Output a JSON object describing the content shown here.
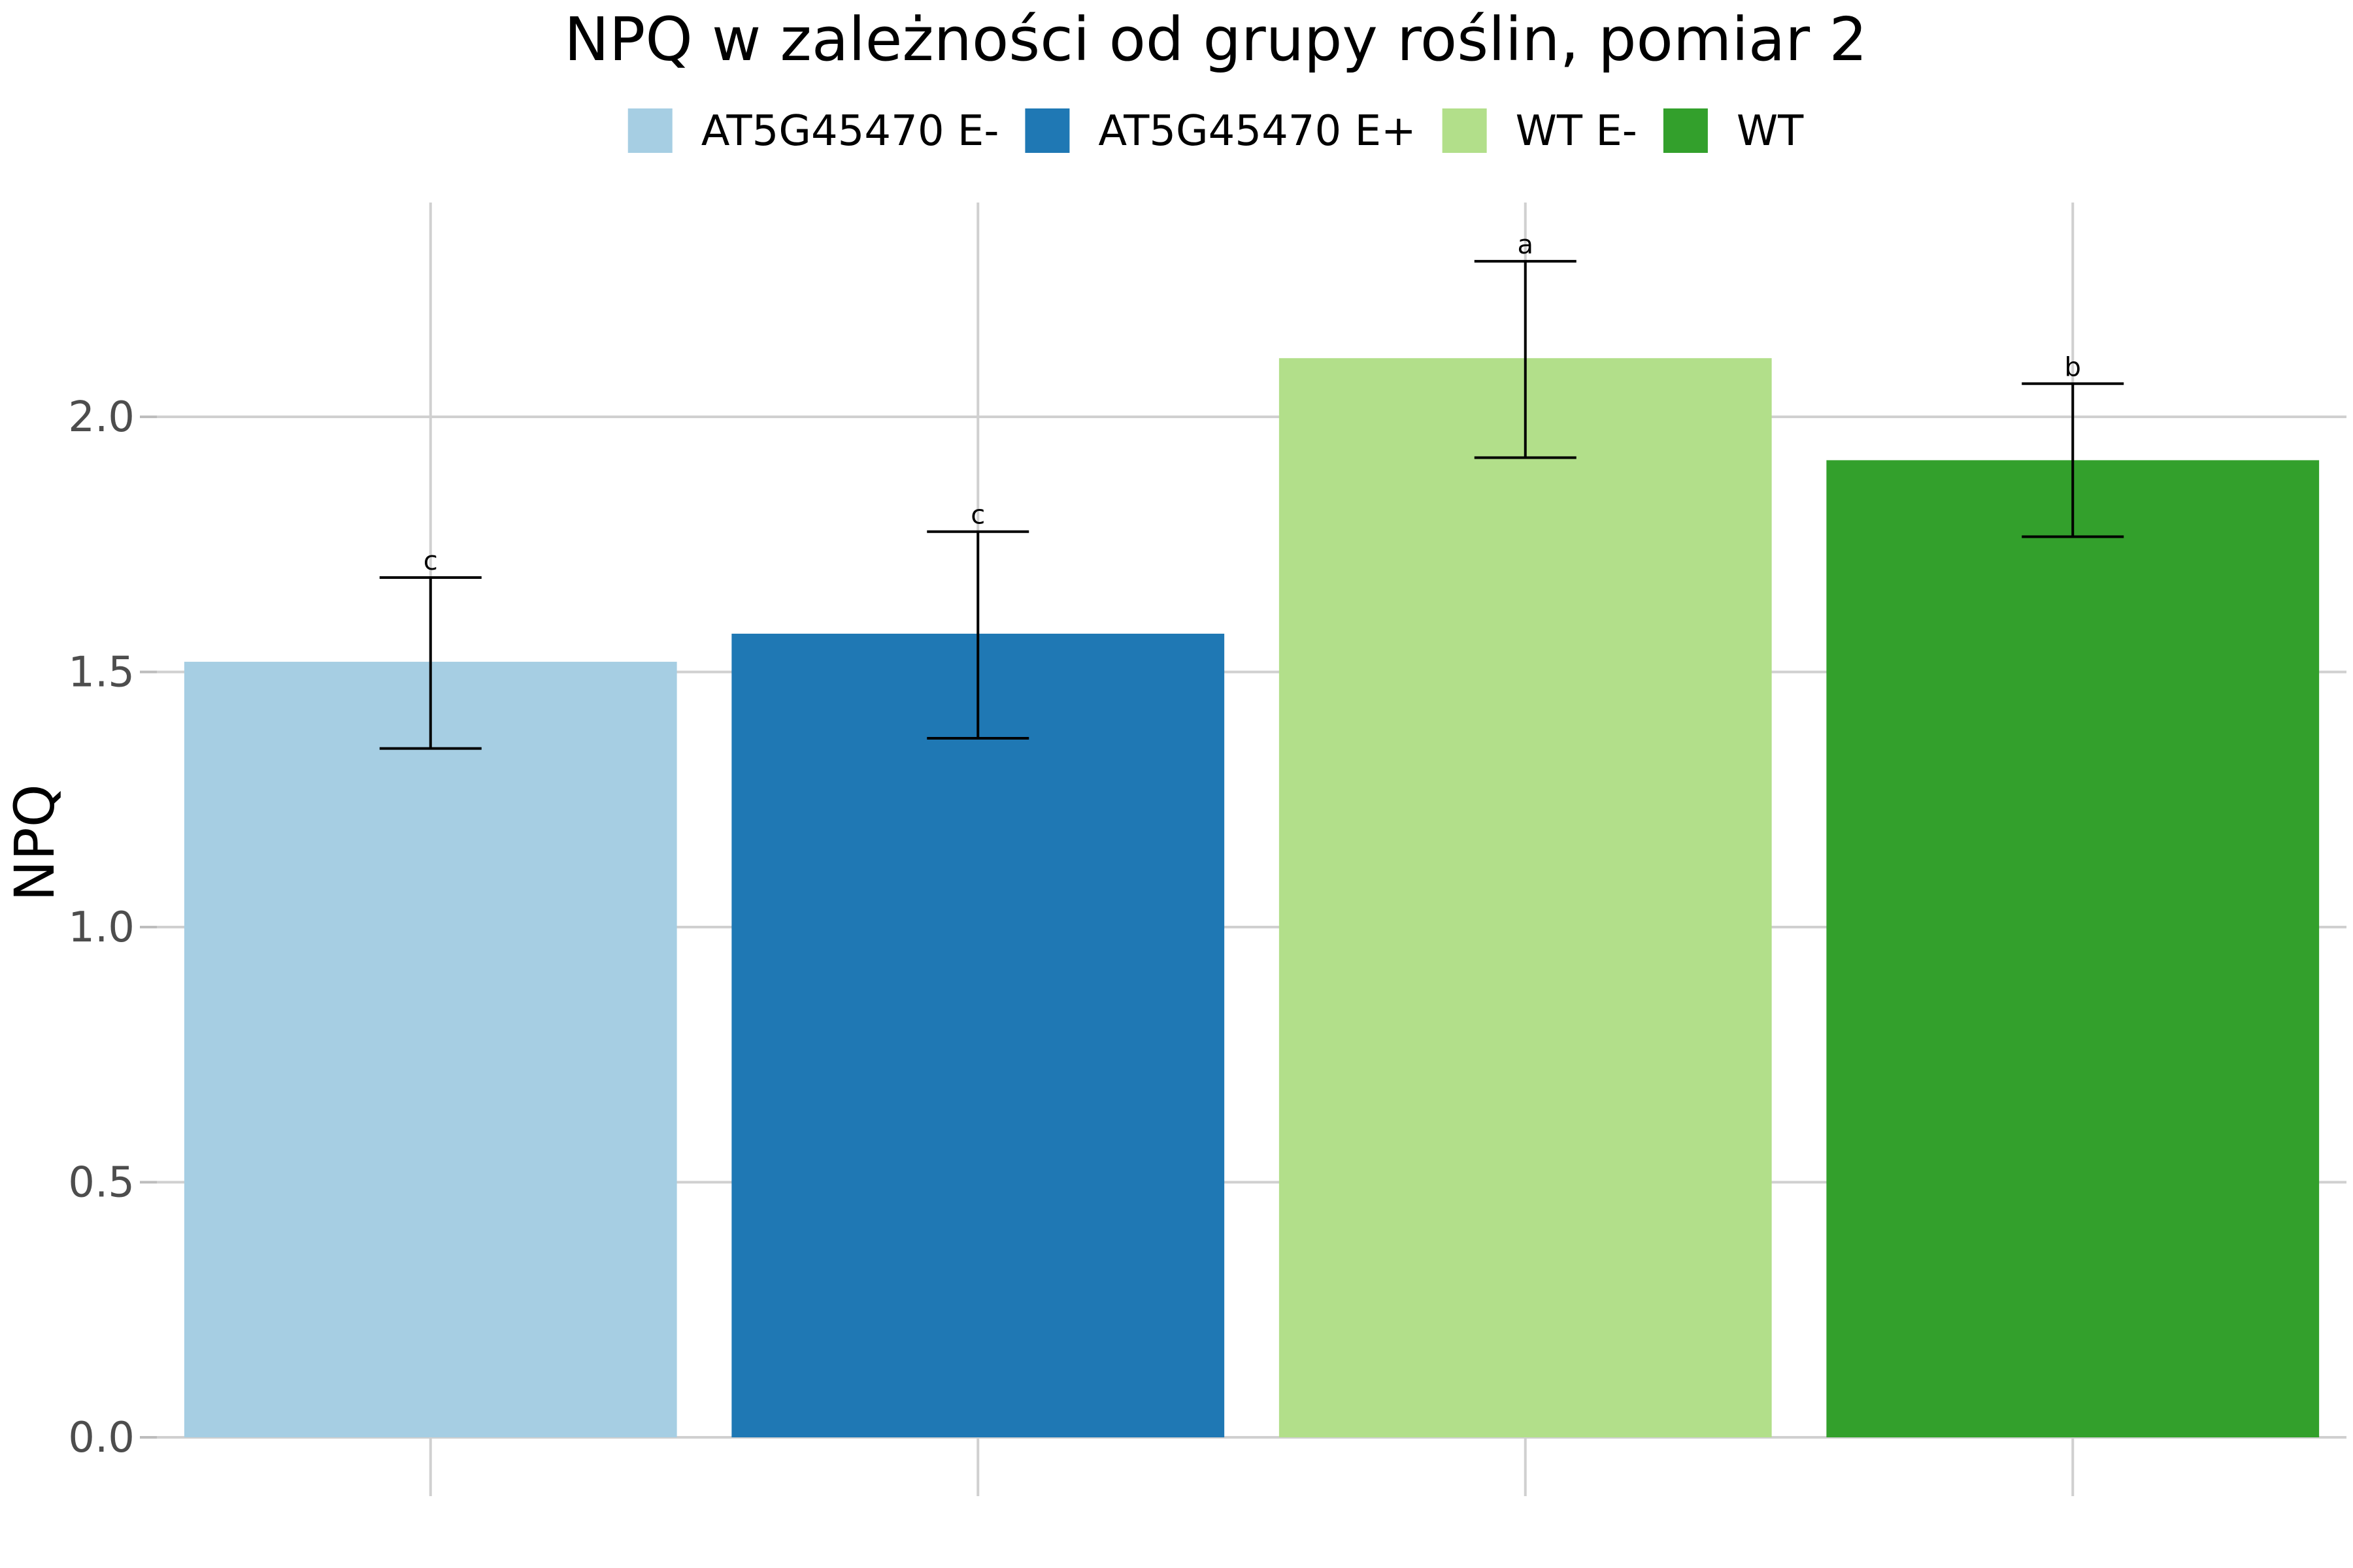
{
  "chart_data": {
    "type": "bar",
    "title": "NPQ w zależności od grupy roślin, pomiar 2",
    "xlabel": "",
    "ylabel": "NPQ",
    "ylim": [
      0,
      2.42
    ],
    "yticks": [
      "0.0",
      "0.5",
      "1.0",
      "1.5",
      "2.0"
    ],
    "grid": true,
    "legend_position": "top",
    "categories": [
      "AT5G45470 E-",
      "AT5G45470 E+",
      "WT E-",
      "WT"
    ],
    "values": [
      1.52,
      1.575,
      2.115,
      1.915
    ],
    "error_low": [
      1.35,
      1.37,
      1.92,
      1.765
    ],
    "error_high": [
      1.685,
      1.775,
      2.305,
      2.065
    ],
    "significance": [
      "c",
      "c",
      "a",
      "b"
    ],
    "colors": [
      "#a6cee3",
      "#1f78b4",
      "#b2df8a",
      "#33a02c"
    ]
  }
}
